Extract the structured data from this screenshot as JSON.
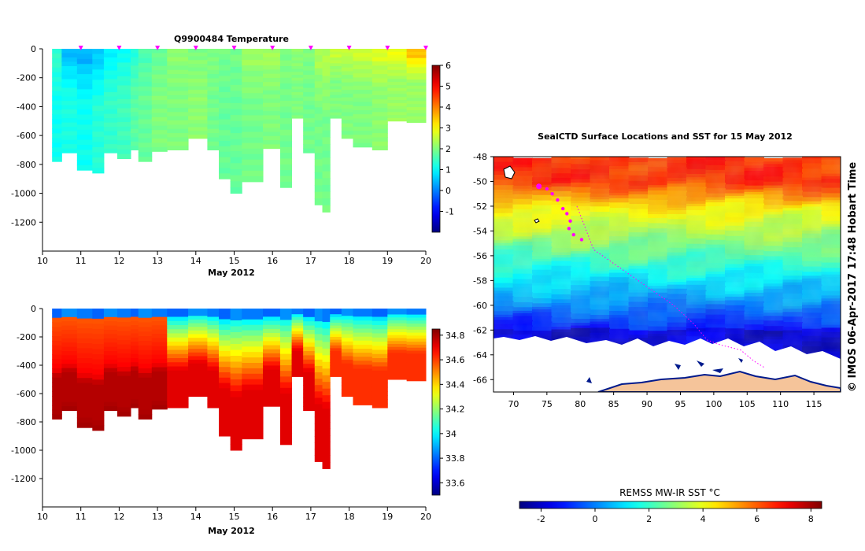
{
  "chart_data": [
    {
      "type": "heatmap",
      "title": "Q9900484  Temperature",
      "xlabel": "May 2012",
      "ylabel": "",
      "xlim": [
        10,
        20
      ],
      "ylim": [
        -1400,
        0
      ],
      "xticks": [
        "10",
        "11",
        "12",
        "13",
        "14",
        "15",
        "16",
        "17",
        "18",
        "19",
        "20"
      ],
      "yticks": [
        "0",
        "-200",
        "-400",
        "-600",
        "-800",
        "-1000",
        "-1200"
      ],
      "colorbar": {
        "min": -2,
        "max": 6,
        "ticks": [
          "-1",
          "0",
          "1",
          "2",
          "3",
          "4",
          "5",
          "6"
        ]
      },
      "profile_days": [
        11,
        12,
        13,
        14,
        15,
        16,
        17,
        18,
        19,
        20
      ],
      "profiles": [
        {
          "x0": 10.25,
          "x1": 10.5,
          "depth": 780,
          "surface": 1.4,
          "deep": 1.1
        },
        {
          "x0": 10.5,
          "x1": 10.9,
          "depth": 720,
          "surface": 0.5,
          "deep": 1.2
        },
        {
          "x0": 10.9,
          "x1": 11.3,
          "depth": 840,
          "surface": 0.4,
          "deep": 1.1
        },
        {
          "x0": 11.3,
          "x1": 11.6,
          "depth": 860,
          "surface": 0.6,
          "deep": 1.3
        },
        {
          "x0": 11.6,
          "x1": 11.95,
          "depth": 720,
          "surface": 0.9,
          "deep": 1.4
        },
        {
          "x0": 11.95,
          "x1": 12.3,
          "depth": 760,
          "surface": 1.1,
          "deep": 1.5
        },
        {
          "x0": 12.3,
          "x1": 12.5,
          "depth": 700,
          "surface": 1.3,
          "deep": 1.7
        },
        {
          "x0": 12.5,
          "x1": 12.85,
          "depth": 780,
          "surface": 1.6,
          "deep": 1.8
        },
        {
          "x0": 12.85,
          "x1": 13.25,
          "depth": 710,
          "surface": 1.8,
          "deep": 2.0
        },
        {
          "x0": 13.25,
          "x1": 13.8,
          "depth": 700,
          "surface": 2.1,
          "deep": 2.0
        },
        {
          "x0": 13.8,
          "x1": 14.3,
          "depth": 620,
          "surface": 2.0,
          "deep": 2.1
        },
        {
          "x0": 14.3,
          "x1": 14.6,
          "depth": 700,
          "surface": 2.0,
          "deep": 1.9
        },
        {
          "x0": 14.6,
          "x1": 14.9,
          "depth": 900,
          "surface": 1.9,
          "deep": 1.8
        },
        {
          "x0": 14.9,
          "x1": 15.2,
          "depth": 1000,
          "surface": 1.9,
          "deep": 1.8
        },
        {
          "x0": 15.2,
          "x1": 15.75,
          "depth": 920,
          "surface": 2.2,
          "deep": 1.9
        },
        {
          "x0": 15.75,
          "x1": 16.2,
          "depth": 690,
          "surface": 2.3,
          "deep": 2.0
        },
        {
          "x0": 16.2,
          "x1": 16.5,
          "depth": 960,
          "surface": 2.0,
          "deep": 1.9
        },
        {
          "x0": 16.5,
          "x1": 16.8,
          "depth": 480,
          "surface": 2.1,
          "deep": 2.0
        },
        {
          "x0": 16.8,
          "x1": 17.1,
          "depth": 720,
          "surface": 2.0,
          "deep": 1.9
        },
        {
          "x0": 17.1,
          "x1": 17.3,
          "depth": 1080,
          "surface": 2.3,
          "deep": 1.9
        },
        {
          "x0": 17.3,
          "x1": 17.5,
          "depth": 1130,
          "surface": 2.4,
          "deep": 1.9
        },
        {
          "x0": 17.5,
          "x1": 17.8,
          "depth": 480,
          "surface": 2.6,
          "deep": 2.0
        },
        {
          "x0": 17.8,
          "x1": 18.1,
          "depth": 620,
          "surface": 2.5,
          "deep": 2.0
        },
        {
          "x0": 18.1,
          "x1": 18.6,
          "depth": 680,
          "surface": 2.6,
          "deep": 2.0
        },
        {
          "x0": 18.6,
          "x1": 19.0,
          "depth": 700,
          "surface": 2.7,
          "deep": 2.1
        },
        {
          "x0": 19.0,
          "x1": 19.5,
          "depth": 500,
          "surface": 2.9,
          "deep": 2.2
        },
        {
          "x0": 19.5,
          "x1": 20.0,
          "depth": 510,
          "surface": 3.5,
          "deep": 2.2
        }
      ]
    },
    {
      "type": "heatmap",
      "title": "",
      "xlabel": "May 2012",
      "xlim": [
        10,
        20
      ],
      "ylim": [
        -1400,
        0
      ],
      "xticks": [
        "10",
        "11",
        "12",
        "13",
        "14",
        "15",
        "16",
        "17",
        "18",
        "19",
        "20"
      ],
      "yticks": [
        "0",
        "-200",
        "-400",
        "-600",
        "-800",
        "-1000",
        "-1200"
      ],
      "colorbar": {
        "min": 33.5,
        "max": 34.85,
        "ticks": [
          "33.6",
          "33.8",
          "34",
          "34.2",
          "34.4",
          "34.6",
          "34.8"
        ]
      }
    },
    {
      "type": "heatmap",
      "title": "SealCTD Surface Locations and SST for 15 May 2012",
      "xlim": [
        67,
        119
      ],
      "ylim": [
        -67,
        -48
      ],
      "xticks": [
        "70",
        "75",
        "80",
        "85",
        "90",
        "95",
        "100",
        "105",
        "110",
        "115"
      ],
      "yticks": [
        "-48",
        "-50",
        "-52",
        "-54",
        "-56",
        "-58",
        "-60",
        "-62",
        "-64",
        "-66"
      ],
      "colorbar": {
        "label": "REMSS MW-IR SST °C",
        "min": -2.8,
        "max": 8.4,
        "ticks": [
          "-2",
          "0",
          "2",
          "4",
          "6",
          "8"
        ]
      },
      "credit": "© IMOS 06-Apr-2017 17:48 Hobart Time",
      "seal_positions": [
        {
          "lon": 73.8,
          "lat": -50.4
        },
        {
          "lon": 75.0,
          "lat": -50.6
        },
        {
          "lon": 75.8,
          "lat": -51.0
        },
        {
          "lon": 76.6,
          "lat": -51.5
        },
        {
          "lon": 77.4,
          "lat": -52.2
        },
        {
          "lon": 78.0,
          "lat": -52.6
        },
        {
          "lon": 78.5,
          "lat": -53.2
        },
        {
          "lon": 78.3,
          "lat": -53.8
        },
        {
          "lon": 79.0,
          "lat": -54.3
        },
        {
          "lon": 80.2,
          "lat": -54.7
        }
      ],
      "track": [
        {
          "lon": 79.5,
          "lat": -52.0
        },
        {
          "lon": 82,
          "lat": -55.5
        },
        {
          "lon": 86,
          "lat": -57
        },
        {
          "lon": 90,
          "lat": -58.5
        },
        {
          "lon": 94,
          "lat": -60
        },
        {
          "lon": 97,
          "lat": -61.5
        },
        {
          "lon": 99,
          "lat": -62.8
        },
        {
          "lon": 101,
          "lat": -63.2
        },
        {
          "lon": 104,
          "lat": -63.6
        },
        {
          "lon": 106,
          "lat": -64.5
        },
        {
          "lon": 107.5,
          "lat": -65.0
        }
      ]
    }
  ]
}
